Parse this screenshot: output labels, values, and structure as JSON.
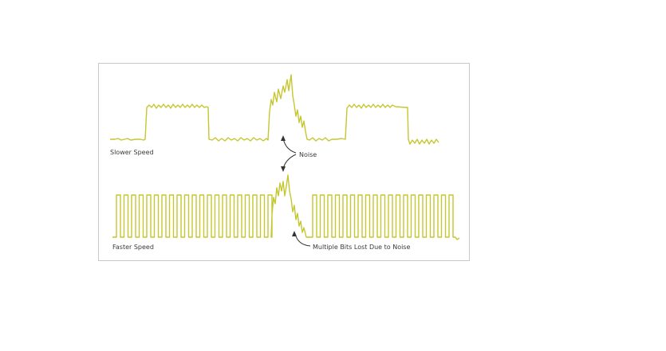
{
  "labels": {
    "slower_speed": "Slower Speed",
    "faster_speed": "Faster Speed",
    "noise": "Noise",
    "bits_lost": "Multiple Bits Lost Due to Noise"
  },
  "colors": {
    "signal": "#c6c631",
    "frame_border": "#c8c8c8",
    "text": "#3a3a3a",
    "arrow": "#333333"
  }
}
